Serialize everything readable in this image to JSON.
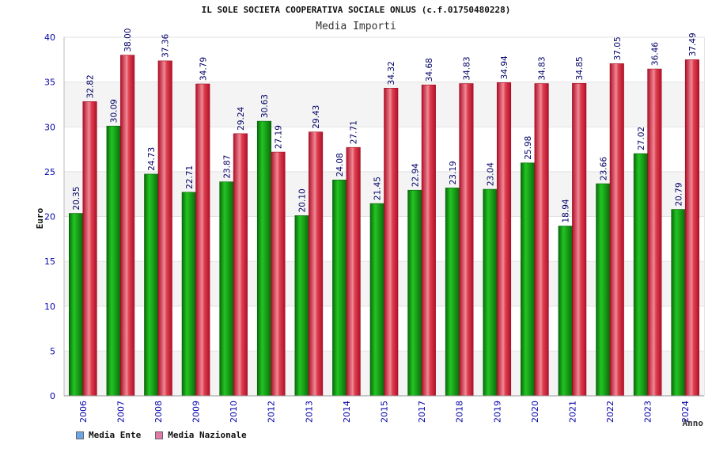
{
  "colors": {
    "ente": "#1aa31a",
    "nazionale": "#e0203a",
    "legend_ente": "#6aa6e8",
    "legend_nazionale": "#e07aa6",
    "axis_text": "#0000aa",
    "label_text": "#000066"
  },
  "legend": {
    "ente_label": "Media Ente",
    "nazionale_label": "Media Nazionale"
  },
  "chart_data": {
    "type": "bar",
    "title": "IL SOLE SOCIETA COOPERATIVA SOCIALE ONLUS (c.f.01750480228)",
    "subtitle": "Media Importi",
    "ylabel": "Euro",
    "xlabel": "Anno",
    "ylim": [
      0,
      40
    ],
    "yticks": [
      0,
      5,
      10,
      15,
      20,
      25,
      30,
      35,
      40
    ],
    "grid": true,
    "legend_position": "bottom-left",
    "categories": [
      "2006",
      "2007",
      "2008",
      "2009",
      "2010",
      "2012",
      "2013",
      "2014",
      "2015",
      "2017",
      "2018",
      "2019",
      "2020",
      "2021",
      "2022",
      "2023",
      "2024"
    ],
    "series": [
      {
        "name": "Media Ente",
        "values": [
          20.35,
          30.09,
          24.73,
          22.71,
          23.87,
          30.63,
          20.1,
          24.08,
          21.45,
          22.94,
          23.19,
          23.04,
          25.98,
          18.94,
          23.66,
          27.02,
          20.79
        ]
      },
      {
        "name": "Media Nazionale",
        "values": [
          32.82,
          38.0,
          37.36,
          34.79,
          29.24,
          27.19,
          29.43,
          27.71,
          34.32,
          34.68,
          34.83,
          34.94,
          34.83,
          34.85,
          37.05,
          36.46,
          37.49
        ]
      }
    ]
  }
}
